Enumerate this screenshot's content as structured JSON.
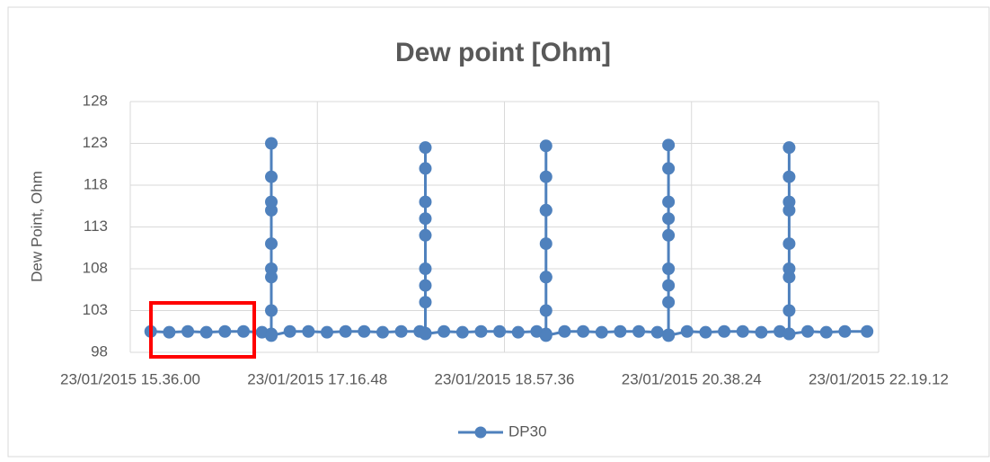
{
  "chart_data": {
    "type": "line",
    "title": "Dew point [Ohm]",
    "y_label": "Dew Point, Ohm",
    "xlim": [
      "2015-01-23T15:36:00",
      "2015-01-23T22:19:12"
    ],
    "xticks": [
      {
        "value": "2015-01-23T15:36:00",
        "label": "23/01/2015 15.36.00"
      },
      {
        "value": "2015-01-23T17:16:48",
        "label": "23/01/2015 17.16.48"
      },
      {
        "value": "2015-01-23T18:57:36",
        "label": "23/01/2015 18.57.36"
      },
      {
        "value": "2015-01-23T20:38:24",
        "label": "23/01/2015 20.38.24"
      },
      {
        "value": "2015-01-23T22:19:12",
        "label": "23/01/2015 22.19.12"
      }
    ],
    "ylim": [
      98,
      128
    ],
    "yticks": [
      98,
      103,
      108,
      113,
      118,
      123,
      128
    ],
    "grid": true,
    "legend": "bottom",
    "series": [
      {
        "name": "DP30",
        "color": "#4f81bd",
        "x": [
          "2015-01-23T15:47:00",
          "2015-01-23T15:57:00",
          "2015-01-23T16:07:00",
          "2015-01-23T16:17:00",
          "2015-01-23T16:27:00",
          "2015-01-23T16:37:00",
          "2015-01-23T16:47:00",
          "2015-01-23T16:52:00",
          "2015-01-23T16:52:00",
          "2015-01-23T16:52:00",
          "2015-01-23T16:52:00",
          "2015-01-23T16:52:00",
          "2015-01-23T16:52:00",
          "2015-01-23T16:52:00",
          "2015-01-23T16:52:00",
          "2015-01-23T16:52:00",
          "2015-01-23T16:52:00",
          "2015-01-23T17:02:00",
          "2015-01-23T17:12:00",
          "2015-01-23T17:22:00",
          "2015-01-23T17:32:00",
          "2015-01-23T17:42:00",
          "2015-01-23T17:52:00",
          "2015-01-23T18:02:00",
          "2015-01-23T18:12:00",
          "2015-01-23T18:15:00",
          "2015-01-23T18:15:00",
          "2015-01-23T18:15:00",
          "2015-01-23T18:15:00",
          "2015-01-23T18:15:00",
          "2015-01-23T18:15:00",
          "2015-01-23T18:15:00",
          "2015-01-23T18:15:00",
          "2015-01-23T18:15:00",
          "2015-01-23T18:15:00",
          "2015-01-23T18:25:00",
          "2015-01-23T18:35:00",
          "2015-01-23T18:45:00",
          "2015-01-23T18:55:00",
          "2015-01-23T19:05:00",
          "2015-01-23T19:15:00",
          "2015-01-23T19:20:00",
          "2015-01-23T19:20:00",
          "2015-01-23T19:20:00",
          "2015-01-23T19:20:00",
          "2015-01-23T19:20:00",
          "2015-01-23T19:20:00",
          "2015-01-23T19:20:00",
          "2015-01-23T19:20:00",
          "2015-01-23T19:20:00",
          "2015-01-23T19:20:00",
          "2015-01-23T19:30:00",
          "2015-01-23T19:40:00",
          "2015-01-23T19:50:00",
          "2015-01-23T20:00:00",
          "2015-01-23T20:10:00",
          "2015-01-23T20:20:00",
          "2015-01-23T20:26:00",
          "2015-01-23T20:26:00",
          "2015-01-23T20:26:00",
          "2015-01-23T20:26:00",
          "2015-01-23T20:26:00",
          "2015-01-23T20:26:00",
          "2015-01-23T20:26:00",
          "2015-01-23T20:26:00",
          "2015-01-23T20:26:00",
          "2015-01-23T20:26:00",
          "2015-01-23T20:36:00",
          "2015-01-23T20:46:00",
          "2015-01-23T20:56:00",
          "2015-01-23T21:06:00",
          "2015-01-23T21:16:00",
          "2015-01-23T21:26:00",
          "2015-01-23T21:31:00",
          "2015-01-23T21:31:00",
          "2015-01-23T21:31:00",
          "2015-01-23T21:31:00",
          "2015-01-23T21:31:00",
          "2015-01-23T21:31:00",
          "2015-01-23T21:31:00",
          "2015-01-23T21:31:00",
          "2015-01-23T21:31:00",
          "2015-01-23T21:31:00",
          "2015-01-23T21:41:00",
          "2015-01-23T21:51:00",
          "2015-01-23T22:01:00",
          "2015-01-23T22:13:00"
        ],
        "values": [
          100.5,
          100.4,
          100.5,
          100.4,
          100.5,
          100.5,
          100.4,
          100.2,
          103,
          107,
          111,
          115,
          119,
          123,
          116,
          108,
          100,
          100.5,
          100.5,
          100.4,
          100.5,
          100.5,
          100.4,
          100.5,
          100.5,
          100.3,
          104,
          108,
          112,
          116,
          120,
          122.5,
          114,
          106,
          100.2,
          100.5,
          100.4,
          100.5,
          100.5,
          100.4,
          100.5,
          100.2,
          103,
          107,
          111,
          115,
          119,
          122.7,
          115,
          107,
          100,
          100.5,
          100.5,
          100.4,
          100.5,
          100.5,
          100.4,
          100.1,
          104,
          108,
          112,
          116,
          120,
          122.8,
          114,
          106,
          100,
          100.5,
          100.4,
          100.5,
          100.5,
          100.4,
          100.5,
          100.2,
          103,
          107,
          111,
          115,
          119,
          122.5,
          116,
          108,
          100.2,
          100.5,
          100.4,
          100.5,
          100.5
        ]
      }
    ]
  }
}
